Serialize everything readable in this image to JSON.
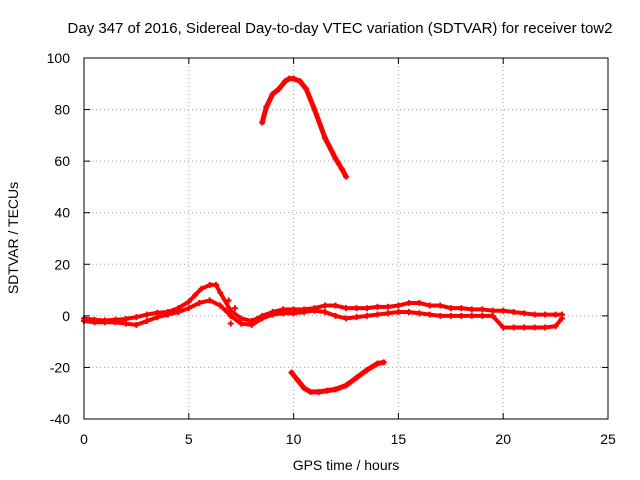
{
  "chart_data": {
    "type": "scatter",
    "title": "Day 347 of 2016, Sidereal Day-to-day VTEC variation (SDTVAR) for receiver tow2",
    "xlabel": "GPS time / hours",
    "ylabel": "SDTVAR / TECUs",
    "xlim": [
      0,
      25
    ],
    "ylim": [
      -40,
      100
    ],
    "xticks": [
      0,
      5,
      10,
      15,
      20,
      25
    ],
    "yticks": [
      -40,
      -20,
      0,
      20,
      40,
      60,
      80,
      100
    ],
    "xtick_labels": [
      "0",
      "5",
      "10",
      "15",
      "20",
      "25"
    ],
    "ytick_labels": [
      "-40",
      "-20",
      "0",
      "20",
      "40",
      "60",
      "80",
      "100"
    ],
    "grid": true,
    "marker": "+",
    "color": "#ff0000",
    "series": [
      {
        "name": "main-band-upper",
        "x": [
          0.0,
          0.5,
          1.0,
          1.5,
          2.0,
          2.5,
          3.0,
          3.5,
          4.0,
          4.5,
          5.0,
          5.3,
          5.6,
          6.0,
          6.3,
          6.5,
          7.0,
          7.5,
          8.0,
          8.5,
          9.0,
          9.5,
          10.0,
          10.5,
          11.0,
          11.5,
          12.0,
          12.5,
          13.0,
          13.5,
          14.0,
          14.5,
          15.0,
          15.5,
          16.0,
          16.5,
          17.0,
          17.5,
          18.0,
          18.5,
          19.0,
          19.5,
          20.0,
          20.5,
          21.0,
          21.5,
          22.0,
          22.5,
          22.8
        ],
        "y": [
          -1,
          -1.5,
          -1.8,
          -1.5,
          -1.2,
          -0.5,
          0.5,
          1.2,
          1.5,
          3.0,
          5.5,
          8,
          10.5,
          12,
          12,
          9,
          2,
          -1,
          -2,
          0,
          1.5,
          2.5,
          2.5,
          2.5,
          3,
          4,
          4,
          3,
          3,
          3,
          3.5,
          3.5,
          4,
          5,
          5,
          4,
          4,
          3,
          3,
          2.5,
          2.5,
          2,
          2,
          1.5,
          1,
          0.5,
          0.5,
          0.5,
          0.5
        ]
      },
      {
        "name": "main-band-lower",
        "x": [
          0.0,
          0.5,
          1.0,
          1.5,
          2.0,
          2.5,
          3.0,
          3.5,
          4.0,
          4.5,
          5.0,
          5.5,
          6.0,
          6.5,
          7.0,
          7.5,
          8.0,
          8.5,
          9.0,
          9.5,
          10.0,
          10.5,
          11.0,
          11.5,
          12.0,
          12.5,
          13.0,
          13.5,
          14.0,
          14.5,
          15.0,
          15.5,
          16.0,
          16.5,
          17.0,
          17.5,
          18.0,
          18.5,
          19.0,
          19.5,
          20.0,
          20.5,
          21.0,
          21.5,
          22.0,
          22.5,
          22.8
        ],
        "y": [
          -2,
          -2.5,
          -2.5,
          -2.5,
          -3,
          -3.5,
          -2,
          -0.5,
          0.5,
          1.5,
          3,
          5,
          6,
          4,
          0,
          -3,
          -3.5,
          -1,
          0.5,
          1,
          1,
          1.5,
          2,
          1.5,
          0,
          -1,
          -0.5,
          0,
          0.5,
          1,
          1.5,
          1.5,
          1,
          0.5,
          0,
          0,
          0,
          0,
          0,
          0,
          -4.5,
          -4.5,
          -4.5,
          -4.5,
          -4.5,
          -4,
          -1
        ]
      },
      {
        "name": "scatter-near-6h",
        "x": [
          6.9,
          6.9,
          7.0,
          7.0,
          7.2
        ],
        "y": [
          6,
          3,
          0,
          -3,
          3
        ]
      },
      {
        "name": "high-arc",
        "x": [
          8.5,
          8.7,
          9.0,
          9.3,
          9.6,
          9.8,
          10.0,
          10.3,
          10.6,
          11.0,
          11.5,
          12.0,
          12.3,
          12.5
        ],
        "y": [
          75,
          81,
          86,
          88,
          91,
          92,
          92,
          91,
          88,
          80,
          69,
          61,
          57,
          54
        ]
      },
      {
        "name": "low-arc",
        "x": [
          9.9,
          10.2,
          10.5,
          10.8,
          11.2,
          11.6,
          12.0,
          12.5,
          13.0,
          13.5,
          14.0,
          14.3
        ],
        "y": [
          -22,
          -25,
          -28,
          -29.5,
          -29.5,
          -29,
          -28.5,
          -27,
          -24,
          -21,
          -18.5,
          -18
        ]
      }
    ]
  }
}
